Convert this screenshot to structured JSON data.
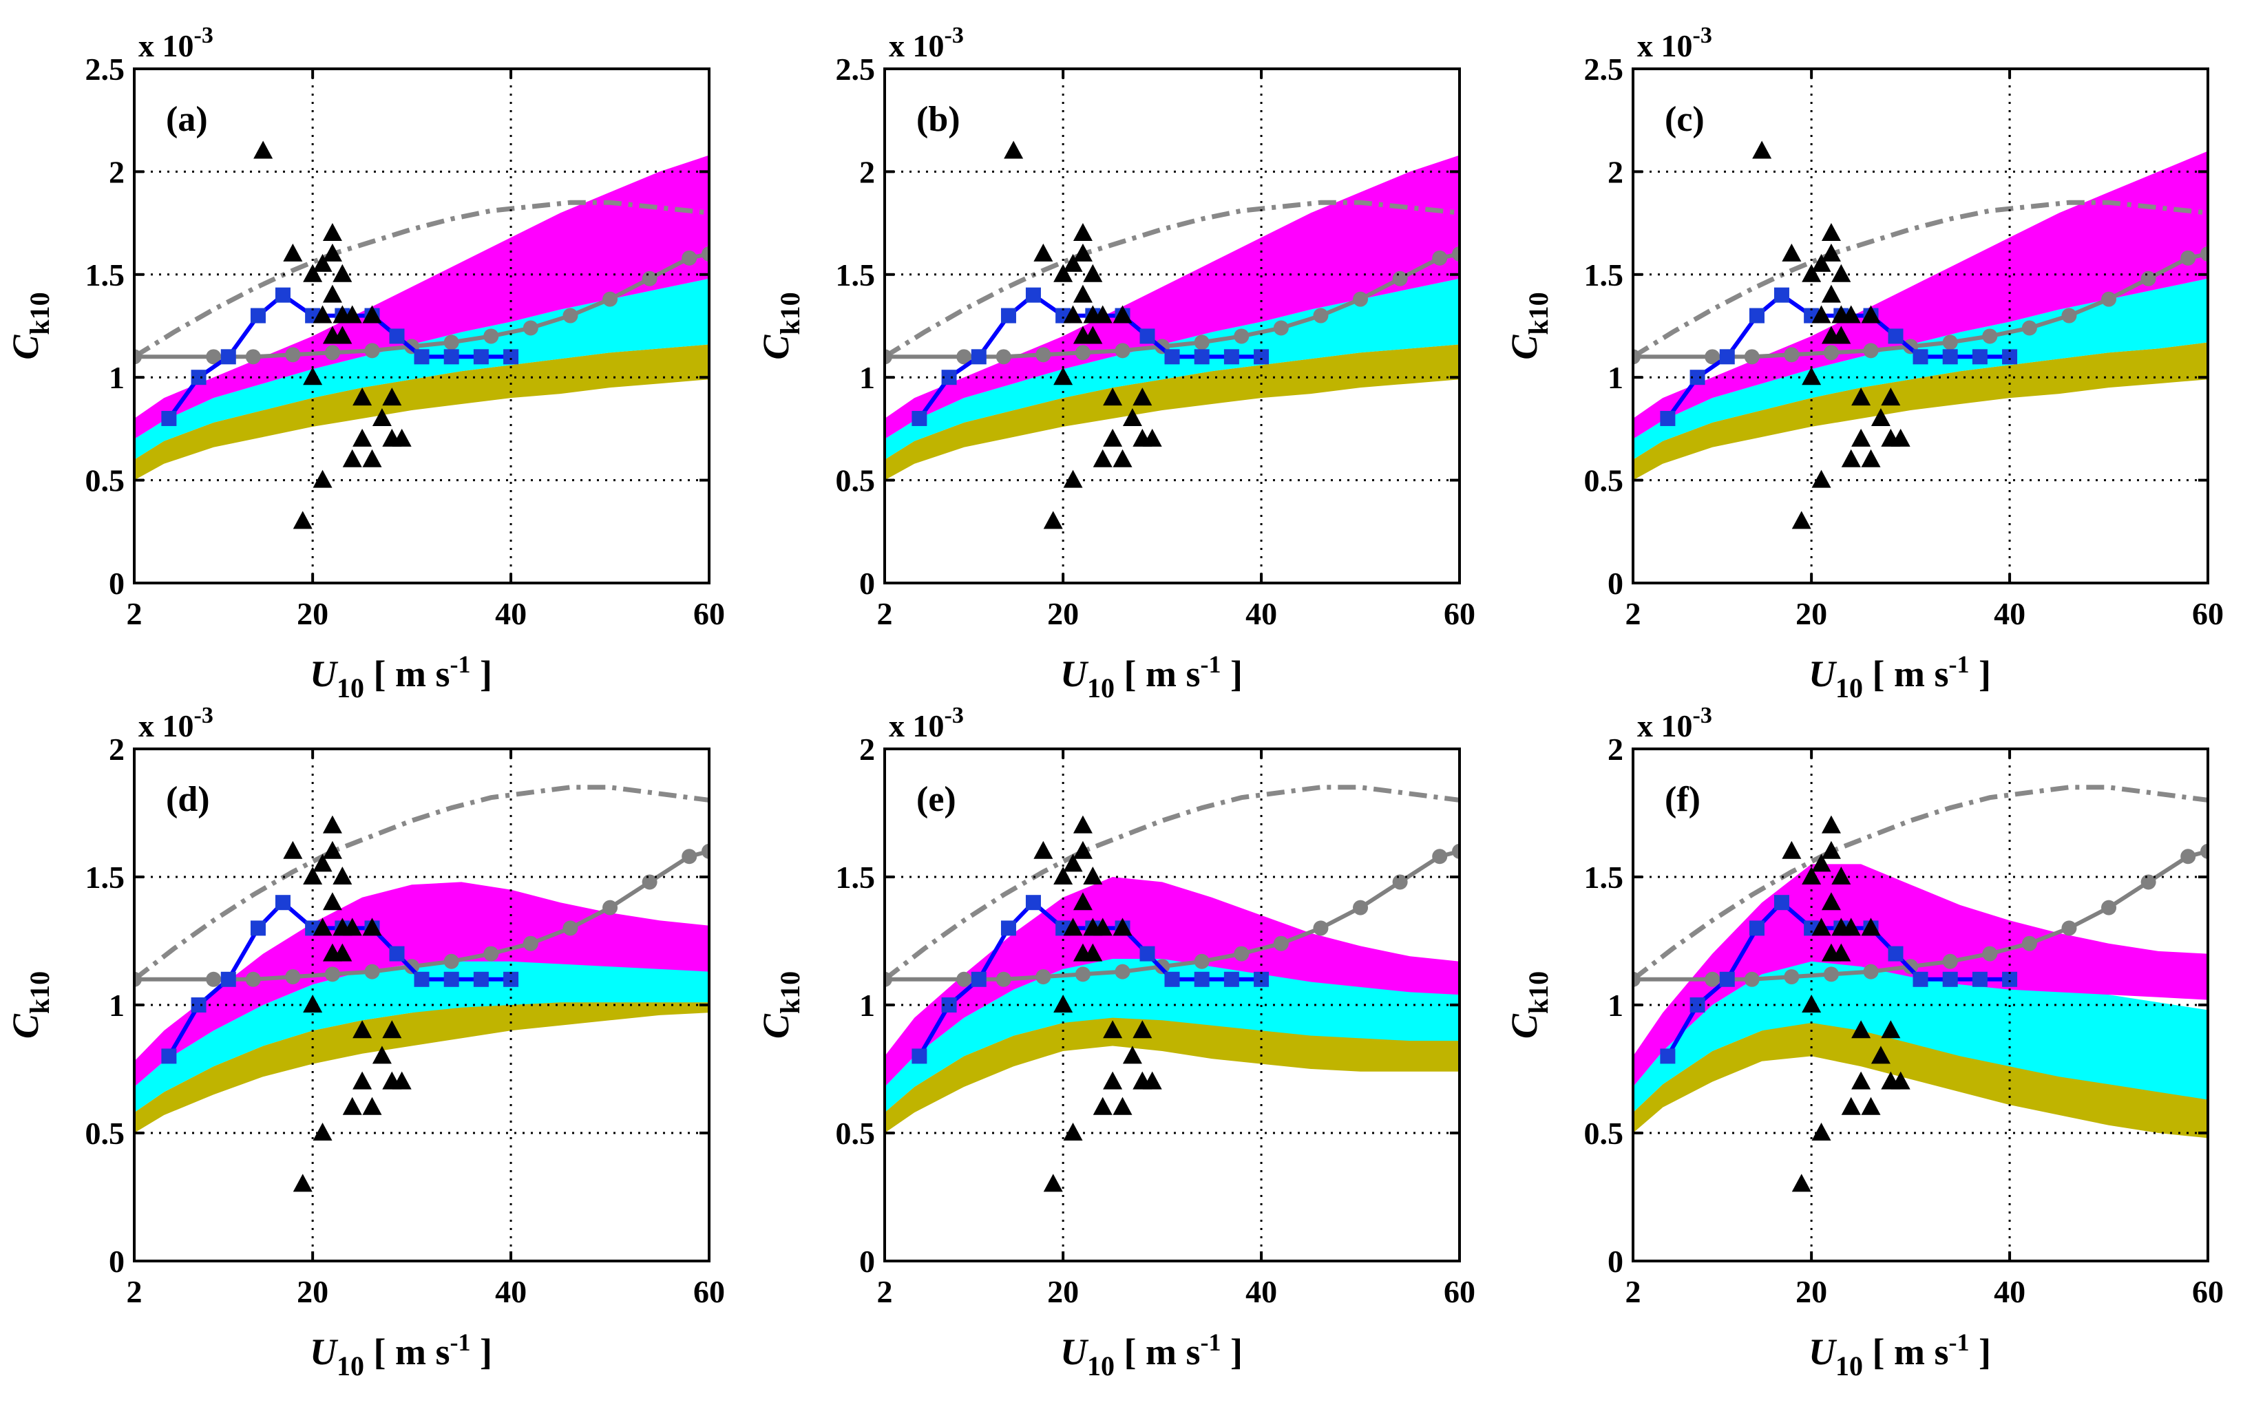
{
  "chart_data": {
    "type": "multi-panel line/band/scatter",
    "layout": "2 rows x 3 columns",
    "xlabel": {
      "var": "U",
      "sub": "10",
      "units": "[ m s",
      "units_sup": "-1",
      "units_end": " ]"
    },
    "ylabel": {
      "var": "C",
      "sub": "k10"
    },
    "xlim": [
      2,
      60
    ],
    "xticks": [
      2,
      20,
      40,
      60
    ],
    "exponent_label": {
      "base": "x 10",
      "sup": "-3"
    },
    "grid": true,
    "colors": {
      "magenta": "#ff00ff",
      "cyan": "#00ffff",
      "olive": "#c0b400",
      "blue": "#0000ff",
      "squares": "#1a3ed6",
      "gray": "#808080",
      "dashdot": "#888888",
      "triangles": "#000000"
    },
    "shared_series": {
      "blue_squares": {
        "x": [
          5.5,
          8.5,
          11.5,
          14.5,
          17,
          20,
          23,
          26,
          28.5,
          31,
          34,
          37,
          40
        ],
        "y": [
          0.8,
          1.0,
          1.1,
          1.3,
          1.4,
          1.3,
          1.3,
          1.3,
          1.2,
          1.1,
          1.1,
          1.1,
          1.1
        ]
      },
      "gray_circles": {
        "x": [
          2,
          10,
          14,
          18,
          22,
          26,
          30,
          34,
          38,
          42,
          46,
          50,
          54,
          58,
          60
        ],
        "y": [
          1.1,
          1.1,
          1.1,
          1.11,
          1.12,
          1.13,
          1.15,
          1.17,
          1.2,
          1.24,
          1.3,
          1.38,
          1.48,
          1.58,
          1.6
        ]
      },
      "gray_dashdot": {
        "x": [
          2,
          6,
          10,
          14,
          18,
          22,
          26,
          30,
          34,
          38,
          42,
          46,
          50,
          54,
          58,
          60
        ],
        "y": [
          1.1,
          1.22,
          1.33,
          1.43,
          1.52,
          1.6,
          1.66,
          1.72,
          1.77,
          1.81,
          1.83,
          1.85,
          1.85,
          1.83,
          1.81,
          1.8
        ]
      },
      "black_triangles": {
        "x": [
          15,
          18,
          19,
          20,
          20,
          21,
          21,
          21,
          22,
          22,
          22,
          22,
          23,
          23,
          23,
          24,
          24,
          25,
          25,
          26,
          26,
          27,
          28,
          28,
          29
        ],
        "y": [
          2.1,
          1.6,
          0.3,
          1.0,
          1.5,
          0.5,
          1.3,
          1.55,
          1.2,
          1.4,
          1.6,
          1.7,
          1.2,
          1.3,
          1.5,
          0.6,
          1.3,
          0.7,
          0.9,
          0.6,
          1.3,
          0.8,
          0.7,
          0.9,
          0.7
        ]
      }
    },
    "panels": [
      {
        "label": "(a)",
        "ylim": [
          0,
          2.5
        ],
        "yticks": [
          "0",
          "0.5",
          "1",
          "1.5",
          "2",
          "2.5"
        ],
        "ytick_values": [
          0,
          0.5,
          1,
          1.5,
          2,
          2.5
        ],
        "bands": {
          "x": [
            2,
            5,
            10,
            15,
            20,
            25,
            30,
            35,
            40,
            45,
            50,
            55,
            60
          ],
          "magenta_top": [
            0.8,
            0.9,
            1.0,
            1.1,
            1.2,
            1.32,
            1.44,
            1.56,
            1.68,
            1.8,
            1.9,
            2.0,
            2.08
          ],
          "magenta_bottom": [
            0.7,
            0.79,
            0.9,
            0.97,
            1.04,
            1.1,
            1.16,
            1.22,
            1.27,
            1.33,
            1.38,
            1.43,
            1.48
          ],
          "cyan_top": [
            0.7,
            0.79,
            0.9,
            0.97,
            1.04,
            1.1,
            1.16,
            1.22,
            1.27,
            1.33,
            1.38,
            1.43,
            1.48
          ],
          "cyan_bottom": [
            0.6,
            0.69,
            0.78,
            0.84,
            0.9,
            0.95,
            0.99,
            1.03,
            1.06,
            1.09,
            1.12,
            1.14,
            1.16
          ],
          "olive_top": [
            0.6,
            0.69,
            0.78,
            0.84,
            0.9,
            0.95,
            0.99,
            1.03,
            1.06,
            1.09,
            1.12,
            1.14,
            1.16
          ],
          "olive_bottom": [
            0.5,
            0.58,
            0.66,
            0.71,
            0.76,
            0.8,
            0.84,
            0.87,
            0.9,
            0.92,
            0.95,
            0.97,
            0.99
          ]
        }
      },
      {
        "label": "(b)",
        "ylim": [
          0,
          2.5
        ],
        "yticks": [
          "0",
          "0.5",
          "1",
          "1.5",
          "2",
          "2.5"
        ],
        "ytick_values": [
          0,
          0.5,
          1,
          1.5,
          2,
          2.5
        ],
        "bands": {
          "x": [
            2,
            5,
            10,
            15,
            20,
            25,
            30,
            35,
            40,
            45,
            50,
            55,
            60
          ],
          "magenta_top": [
            0.8,
            0.9,
            1.0,
            1.1,
            1.2,
            1.32,
            1.44,
            1.56,
            1.68,
            1.8,
            1.9,
            2.0,
            2.08
          ],
          "magenta_bottom": [
            0.7,
            0.79,
            0.9,
            0.97,
            1.04,
            1.1,
            1.16,
            1.22,
            1.27,
            1.33,
            1.38,
            1.43,
            1.48
          ],
          "cyan_top": [
            0.7,
            0.79,
            0.9,
            0.97,
            1.04,
            1.1,
            1.16,
            1.22,
            1.27,
            1.33,
            1.38,
            1.43,
            1.48
          ],
          "cyan_bottom": [
            0.6,
            0.69,
            0.78,
            0.84,
            0.9,
            0.95,
            0.99,
            1.03,
            1.06,
            1.09,
            1.12,
            1.14,
            1.16
          ],
          "olive_top": [
            0.6,
            0.69,
            0.78,
            0.84,
            0.9,
            0.95,
            0.99,
            1.03,
            1.06,
            1.09,
            1.12,
            1.14,
            1.16
          ],
          "olive_bottom": [
            0.5,
            0.58,
            0.66,
            0.71,
            0.76,
            0.8,
            0.84,
            0.87,
            0.9,
            0.92,
            0.95,
            0.97,
            0.99
          ]
        }
      },
      {
        "label": "(c)",
        "ylim": [
          0,
          2.5
        ],
        "yticks": [
          "0",
          "0.5",
          "1",
          "1.5",
          "2",
          "2.5"
        ],
        "ytick_values": [
          0,
          0.5,
          1,
          1.5,
          2,
          2.5
        ],
        "bands": {
          "x": [
            2,
            5,
            10,
            15,
            20,
            25,
            30,
            35,
            40,
            45,
            50,
            55,
            60
          ],
          "magenta_top": [
            0.8,
            0.9,
            1.0,
            1.1,
            1.2,
            1.32,
            1.44,
            1.56,
            1.68,
            1.8,
            1.9,
            2.0,
            2.1
          ],
          "magenta_bottom": [
            0.7,
            0.79,
            0.9,
            0.97,
            1.04,
            1.1,
            1.16,
            1.22,
            1.27,
            1.33,
            1.38,
            1.43,
            1.48
          ],
          "cyan_top": [
            0.7,
            0.79,
            0.9,
            0.97,
            1.04,
            1.1,
            1.16,
            1.22,
            1.27,
            1.33,
            1.38,
            1.43,
            1.48
          ],
          "cyan_bottom": [
            0.6,
            0.69,
            0.78,
            0.84,
            0.9,
            0.95,
            0.99,
            1.03,
            1.06,
            1.09,
            1.12,
            1.14,
            1.17
          ],
          "olive_top": [
            0.6,
            0.69,
            0.78,
            0.84,
            0.9,
            0.95,
            0.99,
            1.03,
            1.06,
            1.09,
            1.12,
            1.14,
            1.17
          ],
          "olive_bottom": [
            0.5,
            0.58,
            0.66,
            0.71,
            0.76,
            0.8,
            0.84,
            0.87,
            0.9,
            0.92,
            0.95,
            0.97,
            0.99
          ]
        }
      },
      {
        "label": "(d)",
        "ylim": [
          0,
          2
        ],
        "yticks": [
          "0",
          "0.5",
          "1",
          "1.5",
          "2"
        ],
        "ytick_values": [
          0,
          0.5,
          1,
          1.5,
          2
        ],
        "bands": {
          "x": [
            2,
            5,
            10,
            15,
            20,
            25,
            30,
            35,
            40,
            45,
            50,
            55,
            60
          ],
          "magenta_top": [
            0.78,
            0.9,
            1.05,
            1.2,
            1.32,
            1.42,
            1.47,
            1.48,
            1.45,
            1.4,
            1.36,
            1.33,
            1.31
          ],
          "magenta_bottom": [
            0.68,
            0.78,
            0.9,
            1.0,
            1.08,
            1.13,
            1.16,
            1.17,
            1.17,
            1.16,
            1.15,
            1.14,
            1.13
          ],
          "cyan_top": [
            0.68,
            0.78,
            0.9,
            1.0,
            1.08,
            1.13,
            1.16,
            1.2,
            1.22,
            1.22,
            1.21,
            1.2,
            1.2
          ],
          "cyan_bottom": [
            0.58,
            0.66,
            0.76,
            0.84,
            0.9,
            0.94,
            0.97,
            0.99,
            1.0,
            1.01,
            1.01,
            1.01,
            1.01
          ],
          "olive_top": [
            0.58,
            0.66,
            0.76,
            0.84,
            0.9,
            0.94,
            0.97,
            1.0,
            1.02,
            1.04,
            1.05,
            1.06,
            1.07
          ],
          "olive_bottom": [
            0.5,
            0.57,
            0.65,
            0.72,
            0.77,
            0.81,
            0.84,
            0.87,
            0.9,
            0.92,
            0.94,
            0.96,
            0.97
          ]
        }
      },
      {
        "label": "(e)",
        "ylim": [
          0,
          2
        ],
        "yticks": [
          "0",
          "0.5",
          "1",
          "1.5",
          "2"
        ],
        "ytick_values": [
          0,
          0.5,
          1,
          1.5,
          2
        ],
        "bands": {
          "x": [
            2,
            5,
            10,
            15,
            20,
            25,
            30,
            35,
            40,
            45,
            50,
            55,
            60
          ],
          "magenta_top": [
            0.8,
            0.95,
            1.12,
            1.28,
            1.42,
            1.5,
            1.48,
            1.42,
            1.35,
            1.28,
            1.23,
            1.19,
            1.17
          ],
          "magenta_bottom": [
            0.68,
            0.8,
            0.95,
            1.06,
            1.14,
            1.18,
            1.18,
            1.15,
            1.12,
            1.09,
            1.07,
            1.05,
            1.04
          ],
          "cyan_top": [
            0.68,
            0.8,
            0.95,
            1.06,
            1.14,
            1.2,
            1.22,
            1.22,
            1.2,
            1.17,
            1.14,
            1.12,
            1.1
          ],
          "cyan_bottom": [
            0.58,
            0.68,
            0.8,
            0.88,
            0.93,
            0.95,
            0.94,
            0.92,
            0.9,
            0.88,
            0.87,
            0.86,
            0.86
          ],
          "olive_top": [
            0.58,
            0.68,
            0.8,
            0.88,
            0.93,
            0.96,
            0.95,
            0.93,
            0.91,
            0.9,
            0.9,
            0.91,
            0.92
          ],
          "olive_bottom": [
            0.5,
            0.58,
            0.68,
            0.76,
            0.82,
            0.84,
            0.82,
            0.79,
            0.77,
            0.75,
            0.74,
            0.74,
            0.74
          ]
        }
      },
      {
        "label": "(f)",
        "ylim": [
          0,
          2
        ],
        "yticks": [
          "0",
          "0.5",
          "1",
          "1.5",
          "2"
        ],
        "ytick_values": [
          0,
          0.5,
          1,
          1.5,
          2
        ],
        "bands": {
          "x": [
            2,
            5,
            10,
            15,
            20,
            25,
            30,
            35,
            40,
            45,
            50,
            55,
            60
          ],
          "magenta_top": [
            0.8,
            0.97,
            1.2,
            1.4,
            1.55,
            1.55,
            1.47,
            1.39,
            1.33,
            1.28,
            1.24,
            1.21,
            1.2
          ],
          "magenta_bottom": [
            0.68,
            0.82,
            1.0,
            1.12,
            1.17,
            1.15,
            1.11,
            1.08,
            1.06,
            1.05,
            1.04,
            1.03,
            1.02
          ],
          "cyan_top": [
            0.68,
            0.82,
            1.0,
            1.12,
            1.2,
            1.25,
            1.25,
            1.2,
            1.14,
            1.08,
            1.04,
            1.01,
            0.98
          ],
          "cyan_bottom": [
            0.58,
            0.69,
            0.82,
            0.9,
            0.93,
            0.9,
            0.85,
            0.8,
            0.76,
            0.72,
            0.69,
            0.66,
            0.63
          ],
          "olive_top": [
            0.58,
            0.69,
            0.82,
            0.9,
            0.94,
            0.91,
            0.87,
            0.84,
            0.82,
            0.8,
            0.79,
            0.78,
            0.78
          ],
          "olive_bottom": [
            0.5,
            0.6,
            0.7,
            0.78,
            0.8,
            0.76,
            0.71,
            0.66,
            0.61,
            0.57,
            0.53,
            0.5,
            0.48
          ]
        }
      }
    ]
  }
}
